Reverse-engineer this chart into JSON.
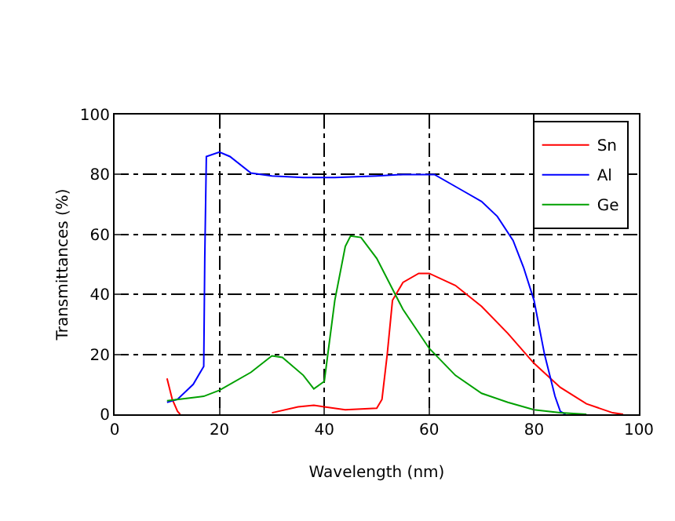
{
  "chart_data": {
    "type": "line",
    "xlabel": "Wavelength (nm)",
    "ylabel": "Transmittances (%)",
    "xlim": [
      0,
      100
    ],
    "ylim": [
      0,
      100
    ],
    "xticks": [
      0,
      20,
      40,
      60,
      80,
      100
    ],
    "yticks": [
      0,
      20,
      40,
      60,
      80,
      100
    ],
    "grid": true,
    "legend": "top right",
    "line_style": "solid",
    "series": [
      {
        "name": "Sn",
        "color": "#ff0000",
        "x": [
          10,
          11,
          12,
          12.5,
          27,
          30,
          35,
          38,
          40,
          44,
          50,
          51,
          52,
          53,
          55,
          58,
          60,
          65,
          70,
          75,
          80,
          85,
          90,
          95,
          97
        ],
        "values": [
          12,
          5,
          1,
          0,
          null,
          0.5,
          2.5,
          3,
          2.5,
          1.5,
          2,
          5,
          20,
          38,
          44,
          47,
          47,
          43,
          36,
          27,
          17,
          9,
          3.5,
          0.5,
          0
        ]
      },
      {
        "name": "Al",
        "color": "#0000ff",
        "x": [
          10,
          12,
          15,
          17,
          17.2,
          17.5,
          20,
          22,
          26,
          30,
          36,
          42,
          50,
          55,
          61,
          66,
          70,
          73,
          76,
          78,
          80,
          82,
          84,
          85,
          86
        ],
        "values": [
          4,
          5,
          10,
          16,
          52,
          86,
          87.5,
          86,
          80.5,
          79.5,
          79,
          79,
          79.5,
          80,
          80,
          75,
          71,
          66,
          58,
          49,
          38,
          20,
          6,
          1,
          0
        ]
      },
      {
        "name": "Ge",
        "color": "#00a000",
        "x": [
          10,
          17,
          20,
          26,
          30,
          32,
          36,
          38,
          40,
          42,
          44,
          45,
          47,
          50,
          55,
          60,
          65,
          70,
          75,
          80,
          85,
          90
        ],
        "values": [
          4.5,
          6,
          8,
          14,
          19.5,
          19,
          13,
          8.5,
          11,
          38,
          56,
          59.5,
          59,
          52,
          35,
          22,
          13,
          7,
          4,
          1.5,
          0.5,
          0
        ]
      }
    ]
  }
}
